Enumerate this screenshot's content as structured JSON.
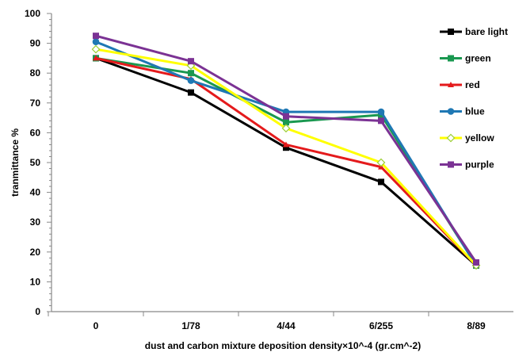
{
  "chart_data": {
    "type": "line",
    "title": "",
    "xlabel": "dust and carbon mixture deposition density×10^-4 (gr.cm^-2)",
    "ylabel": "tranmittance %",
    "categories": [
      "0",
      "1/78",
      "4/44",
      "6/255",
      "8/89"
    ],
    "ylim": [
      0,
      100
    ],
    "yticks": [
      "0",
      "10",
      "20",
      "30",
      "40",
      "50",
      "60",
      "70",
      "80",
      "90",
      "100"
    ],
    "grid": false,
    "legend_position": "top-right",
    "series": [
      {
        "name": "bare light",
        "color": "#000000",
        "marker": "square",
        "values": [
          85,
          73.5,
          55,
          43.5,
          15.5
        ]
      },
      {
        "name": "green",
        "color": "#1a9850",
        "marker": "square",
        "values": [
          85,
          80,
          63.5,
          66,
          15.5
        ]
      },
      {
        "name": "red",
        "color": "#e41a1c",
        "marker": "triangle",
        "values": [
          85,
          78,
          56,
          48.5,
          15.5
        ]
      },
      {
        "name": "blue",
        "color": "#1f78b4",
        "marker": "circle",
        "values": [
          90.5,
          77.5,
          67,
          67,
          15.5
        ]
      },
      {
        "name": "yellow",
        "color": "#ffff00",
        "marker": "diamond",
        "values": [
          88,
          82.5,
          61.5,
          50,
          15.5
        ]
      },
      {
        "name": "purple",
        "color": "#7b3294",
        "marker": "square",
        "values": [
          92.5,
          84,
          65.5,
          64,
          16.5
        ]
      }
    ]
  }
}
